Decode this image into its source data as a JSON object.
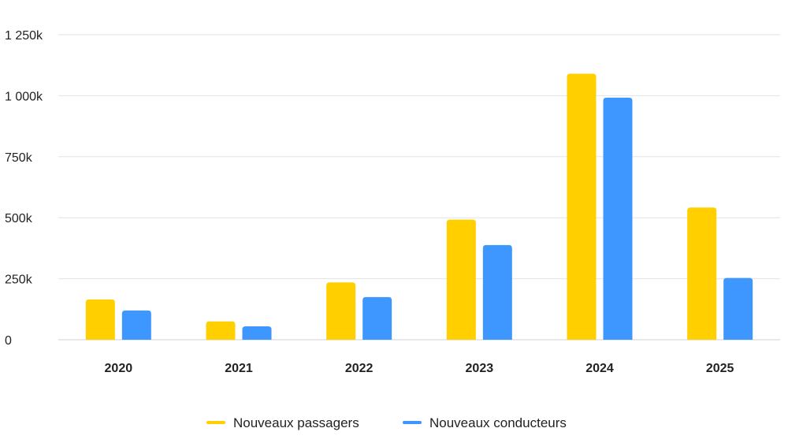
{
  "chart_data": {
    "type": "bar",
    "categories": [
      "2020",
      "2021",
      "2022",
      "2023",
      "2024",
      "2025"
    ],
    "series": [
      {
        "name": "Nouveaux passagers",
        "color": "#FFCF00",
        "values": [
          165,
          75,
          235,
          492,
          1090,
          542
        ]
      },
      {
        "name": "Nouveaux conducteurs",
        "color": "#3E96FF",
        "values": [
          120,
          55,
          175,
          388,
          992,
          253
        ]
      }
    ],
    "units": "thousands",
    "ylim": [
      0,
      1250
    ],
    "yticks": [
      {
        "value": 0,
        "label": "0"
      },
      {
        "value": 250,
        "label": "250k"
      },
      {
        "value": 500,
        "label": "500k"
      },
      {
        "value": 750,
        "label": "750k"
      },
      {
        "value": 1000,
        "label": "1 000k"
      },
      {
        "value": 1250,
        "label": "1 250k"
      }
    ],
    "grid": true,
    "legend": "bottom-center",
    "title": "",
    "xlabel": "",
    "ylabel": ""
  }
}
